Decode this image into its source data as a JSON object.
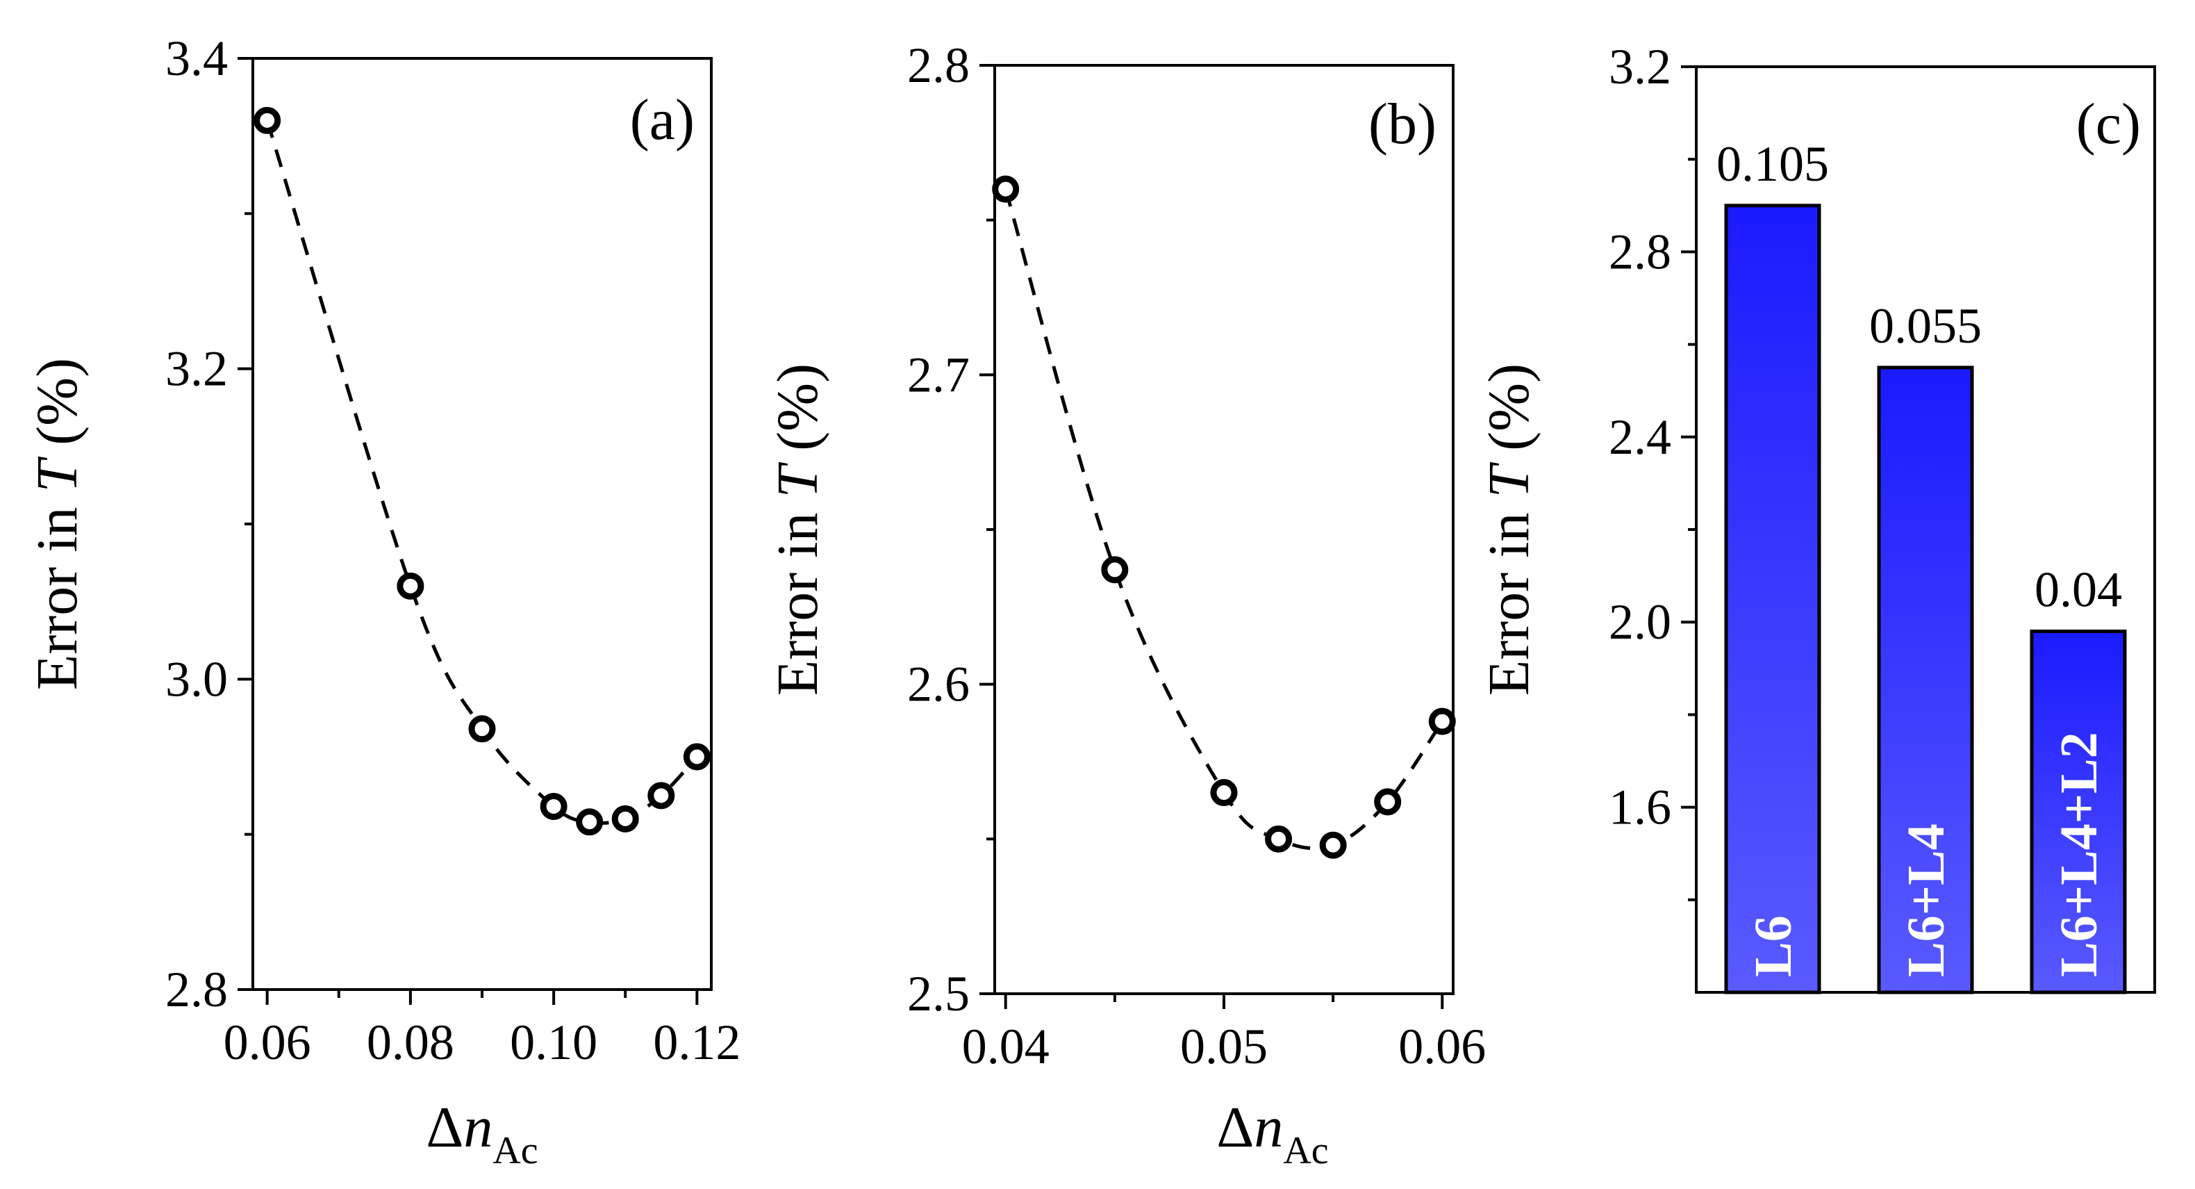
{
  "chart_data": [
    {
      "type": "scatter",
      "panel_label": "(a)",
      "ylabel_prefix": "Error in ",
      "ylabel_var": "T",
      "ylabel_suffix": " (%)",
      "xlabel_delta": "Δ",
      "xlabel_var": "n",
      "xlabel_sub": "Ac",
      "xlim": [
        0.058,
        0.122
      ],
      "ylim": [
        2.8,
        3.4
      ],
      "xticks": [
        "0.06",
        "0.08",
        "0.10",
        "0.12"
      ],
      "xtick_values": [
        0.06,
        0.08,
        0.1,
        0.12
      ],
      "yticks": [
        "2.8",
        "3.0",
        "3.2",
        "3.4"
      ],
      "ytick_values": [
        2.8,
        3.0,
        3.2,
        3.4
      ],
      "x": [
        0.06,
        0.08,
        0.09,
        0.1,
        0.105,
        0.11,
        0.115,
        0.12
      ],
      "y": [
        3.36,
        3.06,
        2.968,
        2.918,
        2.908,
        2.91,
        2.925,
        2.95
      ],
      "fit_line": "dashed"
    },
    {
      "type": "scatter",
      "panel_label": "(b)",
      "ylabel_prefix": "Error in ",
      "ylabel_var": "T",
      "ylabel_suffix": " (%)",
      "xlabel_delta": "Δ",
      "xlabel_var": "n",
      "xlabel_sub": "Ac",
      "xlim": [
        0.0395,
        0.0605
      ],
      "ylim": [
        2.5,
        2.8
      ],
      "xticks": [
        "0.04",
        "0.05",
        "0.06"
      ],
      "xtick_values": [
        0.04,
        0.05,
        0.06
      ],
      "yticks": [
        "2.5",
        "2.6",
        "2.7",
        "2.8"
      ],
      "ytick_values": [
        2.5,
        2.6,
        2.7,
        2.8
      ],
      "x": [
        0.04,
        0.045,
        0.05,
        0.0525,
        0.055,
        0.0575,
        0.06
      ],
      "y": [
        2.76,
        2.637,
        2.565,
        2.55,
        2.548,
        2.562,
        2.588
      ],
      "fit_line": "dashed"
    },
    {
      "type": "bar",
      "panel_label": "(c)",
      "ylabel_prefix": "Error in ",
      "ylabel_var": "T",
      "ylabel_suffix": " (%)",
      "ylim": [
        1.2,
        3.2
      ],
      "yticks": [
        "1.6",
        "2.0",
        "2.4",
        "2.8",
        "3.2"
      ],
      "ytick_values": [
        1.6,
        2.0,
        2.4,
        2.8,
        3.2
      ],
      "categories": [
        "L6",
        "L6+L4",
        "L6+L4+L2"
      ],
      "values": [
        2.9,
        2.55,
        1.98
      ],
      "value_labels": [
        "0.105",
        "0.055",
        "0.04"
      ],
      "bar_color": "#3a3aff"
    }
  ]
}
